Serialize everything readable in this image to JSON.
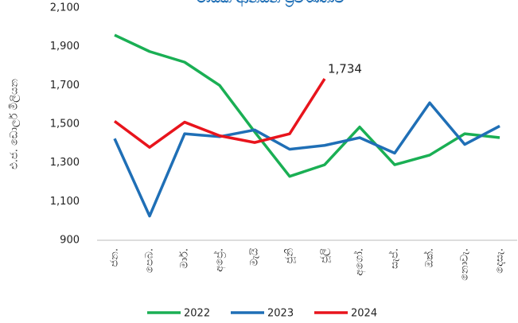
{
  "chart_data": {
    "type": "line",
    "title": "මාසික ආනයන ප්‍රවණතාව",
    "y_label": "එ.ජ. ඩොලර් මිලියන",
    "categories": [
      "ජන.",
      "පෙබ.",
      "මාර්.",
      "අප්‍රේ.",
      "මැයි",
      "ජූනි",
      "ජූලි",
      "අගෝ.",
      "සැප්.",
      "ඔක්.",
      "නොවැ.",
      "දෙසැ."
    ],
    "series": [
      {
        "name": "2022",
        "color": "#1aaf54",
        "values": [
          1960,
          1875,
          1820,
          1700,
          1460,
          1230,
          1290,
          1485,
          1290,
          1340,
          1450,
          1430
        ]
      },
      {
        "name": "2023",
        "color": "#1f6fb6",
        "values": [
          1425,
          1025,
          1450,
          1435,
          1470,
          1370,
          1390,
          1430,
          1350,
          1610,
          1395,
          1490
        ]
      },
      {
        "name": "2024",
        "color": "#e8141c",
        "values": [
          1515,
          1380,
          1510,
          1440,
          1405,
          1450,
          1734,
          null,
          null,
          null,
          null,
          null
        ],
        "value_labels": [
          null,
          null,
          null,
          null,
          null,
          null,
          "1,734",
          null,
          null,
          null,
          null,
          null
        ]
      }
    ],
    "ylim": [
      900,
      2100
    ],
    "yticks": [
      900,
      {
        "value": 1100,
        "label": "1,100"
      },
      {
        "value": 1300,
        "label": "1,300"
      },
      {
        "value": 1500,
        "label": "1,500"
      },
      {
        "value": 1700,
        "label": "1,700"
      },
      {
        "value": 1900,
        "label": "1,900"
      },
      {
        "value": 2100,
        "label": "2,100"
      }
    ],
    "legend": "bottom"
  }
}
